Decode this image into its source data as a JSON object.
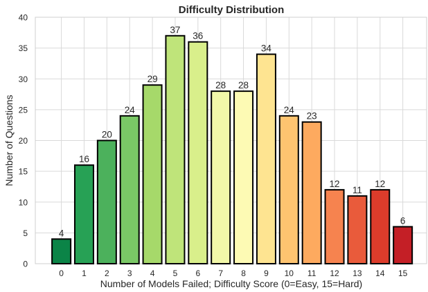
{
  "chart_data": {
    "type": "bar",
    "title": "Difficulty Distribution",
    "xlabel": "Number of Models Failed; Difficulty Score (0=Easy, 15=Hard)",
    "ylabel": "Number of Questions",
    "categories": [
      "0",
      "1",
      "2",
      "3",
      "4",
      "5",
      "6",
      "7",
      "8",
      "9",
      "10",
      "11",
      "12",
      "13",
      "14",
      "15"
    ],
    "values": [
      4,
      16,
      20,
      24,
      29,
      37,
      36,
      28,
      28,
      34,
      24,
      23,
      12,
      11,
      12,
      6
    ],
    "ylim": [
      0,
      40
    ],
    "yticks": [
      0,
      5,
      10,
      15,
      20,
      25,
      30,
      35,
      40
    ],
    "grid": true,
    "legend": "none",
    "colors": [
      "#0b8447",
      "#27a155",
      "#4cb15c",
      "#7ac866",
      "#a6d96a",
      "#bfe47a",
      "#d9ef8b",
      "#f2f8a9",
      "#fdfab4",
      "#fee491",
      "#fec470",
      "#fdaa5f",
      "#f6834f",
      "#e95b3b",
      "#dc3c2b",
      "#c41f26"
    ]
  }
}
